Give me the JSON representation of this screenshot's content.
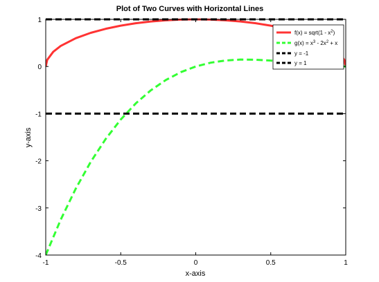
{
  "chart_data": {
    "type": "line",
    "title": "Plot of Two Curves with Horizontal Lines",
    "xlabel": "x-axis",
    "ylabel": "y-axis",
    "xlim": [
      -1,
      1
    ],
    "ylim": [
      -4,
      1
    ],
    "x_ticks": [
      -1,
      -0.5,
      0,
      0.5,
      1
    ],
    "x_tick_labels": [
      "-1",
      "-0.5",
      "0",
      "0.5",
      "1"
    ],
    "y_ticks": [
      -4,
      -3,
      -2,
      -1,
      0,
      1
    ],
    "y_tick_labels": [
      "-4",
      "-3",
      "-2",
      "-1",
      "0",
      "1"
    ],
    "grid": false,
    "legend_position": "top-right",
    "series": [
      {
        "name": "f(x) = sqrt(1 - x²)",
        "label_parts": [
          "f(x) = sqrt(1 - x",
          "2",
          ")"
        ],
        "color": "#ff3333",
        "style": "solid",
        "x": [
          -1,
          -0.99,
          -0.95,
          -0.9,
          -0.8,
          -0.7,
          -0.6,
          -0.5,
          -0.4,
          -0.3,
          -0.2,
          -0.1,
          0,
          0.1,
          0.2,
          0.3,
          0.4,
          0.5,
          0.6,
          0.7,
          0.8,
          0.9,
          0.95,
          0.99,
          1
        ],
        "y": [
          0,
          0.141,
          0.312,
          0.436,
          0.6,
          0.714,
          0.8,
          0.866,
          0.917,
          0.954,
          0.98,
          0.995,
          1,
          0.995,
          0.98,
          0.954,
          0.917,
          0.866,
          0.8,
          0.714,
          0.6,
          0.436,
          0.312,
          0.141,
          0
        ]
      },
      {
        "name": "g(x) = x³ - 2x² + x",
        "label_parts": [
          "g(x) = x",
          "3",
          " - 2x",
          "2",
          " + x"
        ],
        "color": "#33ff33",
        "style": "dashed",
        "x": [
          -1,
          -0.9,
          -0.8,
          -0.7,
          -0.6,
          -0.5,
          -0.4,
          -0.3,
          -0.2,
          -0.1,
          0,
          0.1,
          0.2,
          0.3,
          0.4,
          0.5,
          0.6,
          0.7,
          0.8,
          0.9,
          1
        ],
        "y": [
          -4,
          -3.249,
          -2.592,
          -2.023,
          -1.536,
          -1.125,
          -0.784,
          -0.507,
          -0.288,
          -0.121,
          0,
          0.081,
          0.128,
          0.147,
          0.144,
          0.125,
          0.096,
          0.063,
          0.032,
          0.009,
          0
        ]
      },
      {
        "name": "y = -1",
        "label_parts": [
          "y = -1"
        ],
        "color": "#000000",
        "style": "dashed",
        "x": [
          -1,
          1
        ],
        "y": [
          -1,
          -1
        ]
      },
      {
        "name": "y = 1",
        "label_parts": [
          "y = 1"
        ],
        "color": "#000000",
        "style": "dashed",
        "x": [
          -1,
          1
        ],
        "y": [
          1,
          1
        ]
      }
    ]
  }
}
